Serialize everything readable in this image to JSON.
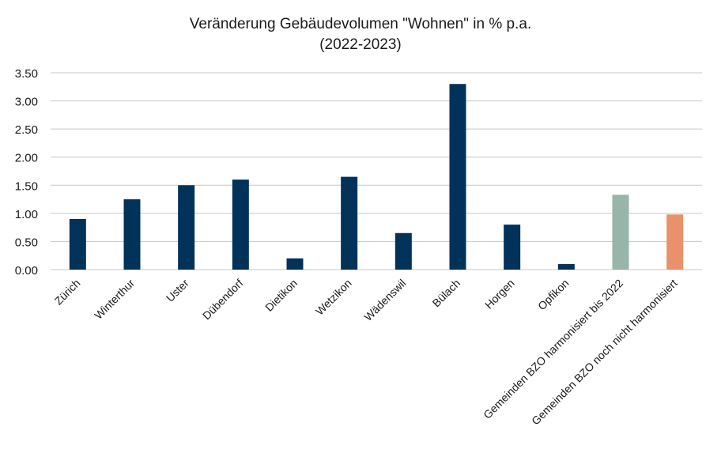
{
  "chart_data": {
    "type": "bar",
    "title": "Veränderung Gebäudevolumen \"Wohnen\" in % p.a.",
    "subtitle": "(2022-2023)",
    "xlabel": "",
    "ylabel": "",
    "categories": [
      "Zürich",
      "Winterthur",
      "Uster",
      "Dübendorf",
      "Dietikon",
      "Wetzikon",
      "Wädenswil",
      "Bülach",
      "Horgen",
      "Opfikon",
      "Gemeinden BZO harmonisiert bis 2022",
      "Gemeinden BZO noch nicht harmonisiert"
    ],
    "values": [
      0.9,
      1.25,
      1.5,
      1.6,
      0.2,
      1.65,
      0.65,
      3.3,
      0.8,
      0.1,
      1.33,
      0.98
    ],
    "colors": [
      "#00325a",
      "#00325a",
      "#00325a",
      "#00325a",
      "#00325a",
      "#00325a",
      "#00325a",
      "#00325a",
      "#00325a",
      "#00325a",
      "#97b5a8",
      "#e8916a"
    ],
    "ylim": [
      0,
      3.5
    ],
    "yticks": [
      "0.00",
      "0.50",
      "1.00",
      "1.50",
      "2.00",
      "2.50",
      "3.00",
      "3.50"
    ],
    "grid": true,
    "gridline_color": "#c8c8c8",
    "legend": "none"
  }
}
